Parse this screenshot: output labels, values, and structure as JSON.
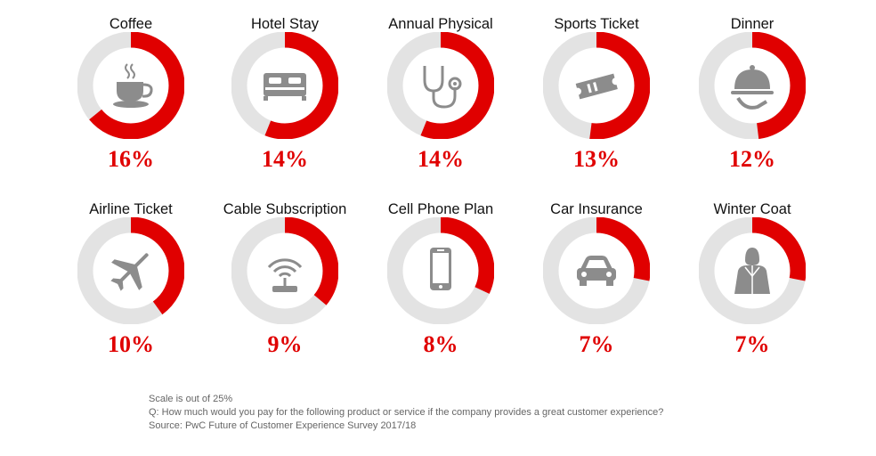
{
  "colors": {
    "accent": "#e00000",
    "track": "#e3e3e3",
    "icon": "#8c8c8c"
  },
  "chart_data": {
    "type": "donut",
    "scale_max": 25,
    "unit": "%",
    "items": [
      {
        "label": "Coffee",
        "value": 16,
        "value_label": "16%",
        "icon": "coffee-cup-icon"
      },
      {
        "label": "Hotel Stay",
        "value": 14,
        "value_label": "14%",
        "icon": "bed-icon"
      },
      {
        "label": "Annual Physical",
        "value": 14,
        "value_label": "14%",
        "icon": "stethoscope-icon"
      },
      {
        "label": "Sports Ticket",
        "value": 13,
        "value_label": "13%",
        "icon": "ticket-icon"
      },
      {
        "label": "Dinner",
        "value": 12,
        "value_label": "12%",
        "icon": "serving-cloche-icon"
      },
      {
        "label": "Airline Ticket",
        "value": 10,
        "value_label": "10%",
        "icon": "airplane-icon"
      },
      {
        "label": "Cable Subscription",
        "value": 9,
        "value_label": "9%",
        "icon": "wifi-router-icon"
      },
      {
        "label": "Cell Phone Plan",
        "value": 8,
        "value_label": "8%",
        "icon": "mobile-phone-icon"
      },
      {
        "label": "Car Insurance",
        "value": 7,
        "value_label": "7%",
        "icon": "car-icon"
      },
      {
        "label": "Winter Coat",
        "value": 7,
        "value_label": "7%",
        "icon": "coat-icon"
      }
    ]
  },
  "footnotes": {
    "scale": "Scale is out of 25%",
    "question": "Q: How much would you pay for the following product or service if the company provides a great customer experience?",
    "source": "Source: PwC Future of Customer Experience Survey 2017/18"
  }
}
